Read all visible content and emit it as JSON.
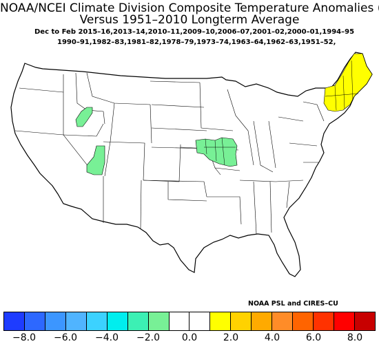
{
  "title": {
    "line1": "NOAA/NCEI Climate Division Composite Temperature Anomalies (F)",
    "line2": "Versus 1951–2010 Longterm Average"
  },
  "subtitle": {
    "line1": "Dec to Feb  2015–16,2013–14,2010–11,2009–10,2006–07,2001–02,2000–01,1994–95",
    "line2": "1990–91,1982–83,1981–82,1978–79,1973–74,1963–64,1962–63,1951–52,"
  },
  "credit": "NOAA PSL and CIRES–CU",
  "colorbar": {
    "colors": [
      "#1e3cff",
      "#2d68ff",
      "#3c96ff",
      "#50b4ff",
      "#3cd2ff",
      "#00eeee",
      "#3cf0b4",
      "#78f096",
      "#ffffff",
      "#ffffff",
      "#ffff00",
      "#ffd200",
      "#ffaa00",
      "#ff8c28",
      "#ff6400",
      "#ff3200",
      "#ff0000",
      "#c80000"
    ],
    "tick_labels": [
      "−8.0",
      "−6.0",
      "−4.0",
      "−2.0",
      "0.0",
      "2.0",
      "4.0",
      "6.0",
      "8.0"
    ]
  },
  "map": {
    "highlight_colors": {
      "light_green": "#78f096",
      "yellow": "#ffff00",
      "outline": "#000000"
    },
    "regions": [
      {
        "name": "new-england",
        "anomaly_class": "2.0 to 3.0"
      },
      {
        "name": "central-plains-iowa-kansas",
        "anomaly_class": "-2.0 to -1.0"
      },
      {
        "name": "nevada-southern",
        "anomaly_class": "-2.0 to -1.0"
      },
      {
        "name": "idaho-southern",
        "anomaly_class": "-2.0 to -1.0"
      }
    ]
  }
}
